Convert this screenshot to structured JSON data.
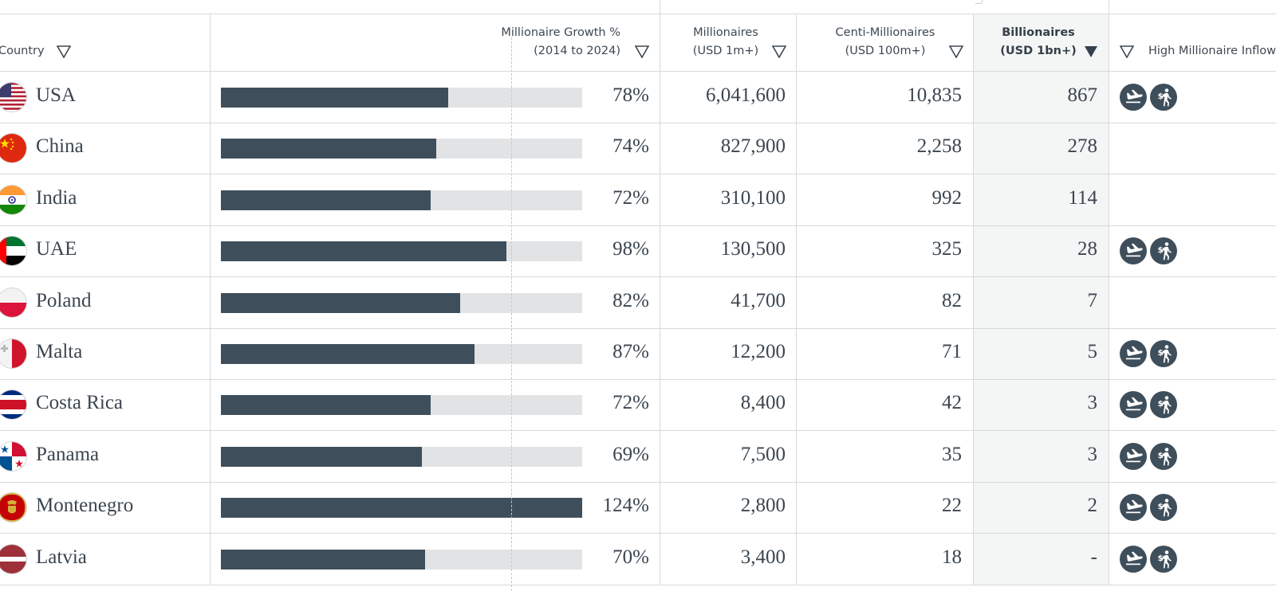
{
  "header": {
    "country_label": "Country",
    "growth_line1": "Millionaire Growth %",
    "growth_line2": "(2014 to 2024)",
    "millionaires_line1": "Millionaires",
    "millionaires_line2": "(USD 1m+)",
    "centi_line1": "Centi-Millionaires",
    "centi_line2": "(USD 100m+)",
    "billionaires_line1": "Billionaires",
    "billionaires_line2": "(USD 1bn+)",
    "inflows_label": "High Millionaire Inflows"
  },
  "rows": [
    {
      "country": "USA",
      "growth_pct": 78,
      "growth_label": "78%",
      "millionaires": "6,041,600",
      "centi": "10,835",
      "billionaires": "867",
      "inflows": true,
      "flag": "usa-flag-icon"
    },
    {
      "country": "China",
      "growth_pct": 74,
      "growth_label": "74%",
      "millionaires": "827,900",
      "centi": "2,258",
      "billionaires": "278",
      "inflows": false,
      "flag": "china-flag-icon"
    },
    {
      "country": "India",
      "growth_pct": 72,
      "growth_label": "72%",
      "millionaires": "310,100",
      "centi": "992",
      "billionaires": "114",
      "inflows": false,
      "flag": "india-flag-icon"
    },
    {
      "country": "UAE",
      "growth_pct": 98,
      "growth_label": "98%",
      "millionaires": "130,500",
      "centi": "325",
      "billionaires": "28",
      "inflows": true,
      "flag": "uae-flag-icon"
    },
    {
      "country": "Poland",
      "growth_pct": 82,
      "growth_label": "82%",
      "millionaires": "41,700",
      "centi": "82",
      "billionaires": "7",
      "inflows": false,
      "flag": "poland-flag-icon"
    },
    {
      "country": "Malta",
      "growth_pct": 87,
      "growth_label": "87%",
      "millionaires": "12,200",
      "centi": "71",
      "billionaires": "5",
      "inflows": true,
      "flag": "malta-flag-icon"
    },
    {
      "country": "Costa Rica",
      "growth_pct": 72,
      "growth_label": "72%",
      "millionaires": "8,400",
      "centi": "42",
      "billionaires": "3",
      "inflows": true,
      "flag": "costa-rica-flag-icon"
    },
    {
      "country": "Panama",
      "growth_pct": 69,
      "growth_label": "69%",
      "millionaires": "7,500",
      "centi": "35",
      "billionaires": "3",
      "inflows": true,
      "flag": "panama-flag-icon"
    },
    {
      "country": "Montenegro",
      "growth_pct": 124,
      "growth_label": "124%",
      "millionaires": "2,800",
      "centi": "22",
      "billionaires": "2",
      "inflows": true,
      "flag": "montenegro-flag-icon"
    },
    {
      "country": "Latvia",
      "growth_pct": 70,
      "growth_label": "70%",
      "millionaires": "3,400",
      "centi": "18",
      "billionaires": "-",
      "inflows": true,
      "flag": "latvia-flag-icon"
    }
  ],
  "growth_scale_max_pct": 124,
  "colors": {
    "bar": "#3f4e5b",
    "bar_track": "#e1e3e5",
    "sorted_column": "#f4f5f5",
    "icon_bg": "#3f4e5b"
  },
  "icons": {
    "arrival": "plane-landing-icon",
    "wealth_traveler": "wealth-traveler-icon",
    "filter": "filter-triangle-icon",
    "sort": "sort-desc-icon"
  }
}
